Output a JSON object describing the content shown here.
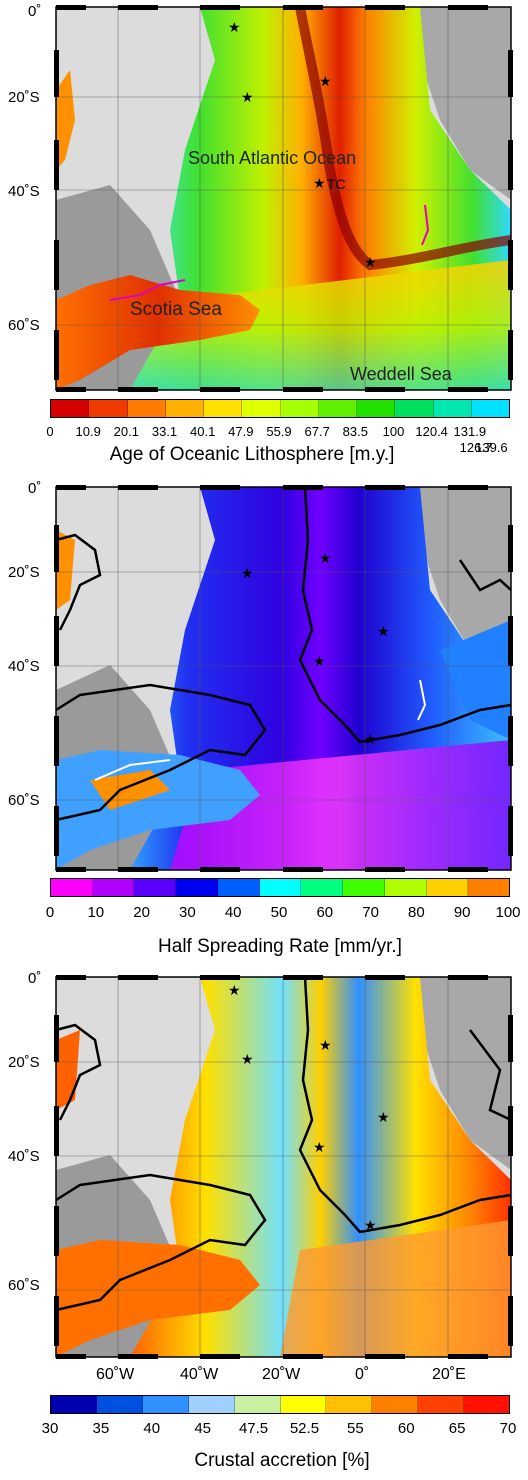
{
  "panels": [
    {
      "id": "age",
      "lat_labels": [
        "0˚",
        "20˚S",
        "40˚S",
        "60˚S"
      ],
      "place_labels": {
        "atlantic": "South Atlantic Ocean",
        "tc": "TC",
        "scotia": "Scotia Sea",
        "weddell": "Weddell Sea"
      },
      "colorbar": {
        "ticks": [
          "0",
          "10.9",
          "20.1",
          "33.1",
          "40.1",
          "47.9",
          "55.9",
          "67.7",
          "83.5",
          "100",
          "120.4",
          "131.9"
        ],
        "ticks_low": [
          "126.7",
          "139.6"
        ],
        "title": "Age of Oceanic Lithosphere [m.y.]",
        "colors": [
          "#d60000",
          "#ef3a00",
          "#ff7a00",
          "#ffb000",
          "#ffe000",
          "#e0ff00",
          "#a6ff00",
          "#60f000",
          "#20e000",
          "#00e060",
          "#00e8b0",
          "#00e0ff"
        ]
      }
    },
    {
      "id": "spreading",
      "lat_labels": [
        "0˚",
        "20˚S",
        "40˚S",
        "60˚S"
      ],
      "colorbar": {
        "ticks": [
          "0",
          "10",
          "20",
          "30",
          "40",
          "50",
          "60",
          "70",
          "80",
          "90",
          "100"
        ],
        "title": "Half Spreading Rate [mm/yr.]",
        "colors": [
          "#ff00ff",
          "#b000ff",
          "#5a00ff",
          "#0000f0",
          "#0060ff",
          "#00ffff",
          "#00ff80",
          "#40ff00",
          "#b0ff00",
          "#ffd000",
          "#ff8000"
        ]
      }
    },
    {
      "id": "accretion",
      "lat_labels": [
        "0˚",
        "20˚S",
        "40˚S",
        "60˚S"
      ],
      "lon_labels": [
        "60˚W",
        "40˚W",
        "20˚W",
        "0˚",
        "20˚E"
      ],
      "colorbar": {
        "ticks": [
          "30",
          "35",
          "40",
          "45",
          "47.5",
          "52.5",
          "55",
          "60",
          "65",
          "70"
        ],
        "title": "Crustal accretion [%]",
        "colors": [
          "#0000b0",
          "#0050e0",
          "#3090ff",
          "#a0d0ff",
          "#c8f0a0",
          "#ffff00",
          "#ffc000",
          "#ff8000",
          "#ff4000",
          "#ff1000"
        ]
      }
    }
  ]
}
